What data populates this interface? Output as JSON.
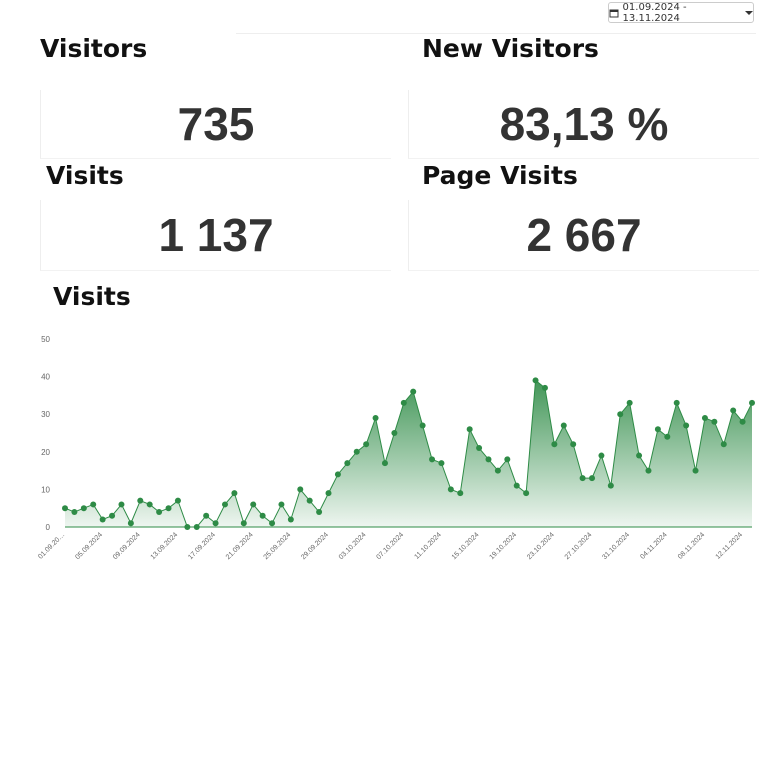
{
  "date_range": "01.09.2024 - 13.11.2024",
  "stats": [
    {
      "label": "Visitors",
      "value": "735"
    },
    {
      "label": "New Visitors",
      "value": "83,13 %"
    },
    {
      "label": "Visits",
      "value": "1 137"
    },
    {
      "label": "Page Visits",
      "value": "2 667"
    }
  ],
  "chart_data": {
    "type": "area",
    "title": "Visits",
    "categories": [
      "01.09.20…",
      null,
      null,
      null,
      "05.09.2024",
      null,
      null,
      null,
      "09.09.2024",
      null,
      null,
      null,
      "13.09.2024",
      null,
      null,
      null,
      "17.09.2024",
      null,
      null,
      null,
      "21.09.2024",
      null,
      null,
      null,
      "25.09.2024",
      null,
      null,
      null,
      "29.09.2024",
      null,
      null,
      null,
      "03.10.2024",
      null,
      null,
      null,
      "07.10.2024",
      null,
      null,
      null,
      "11.10.2024",
      null,
      null,
      null,
      "15.10.2024",
      null,
      null,
      null,
      "19.10.2024",
      null,
      null,
      null,
      "23.10.2024",
      null,
      null,
      null,
      "27.10.2024",
      null,
      null,
      null,
      "31.10.2024",
      null,
      null,
      null,
      "04.11.2024",
      null,
      null,
      null,
      "08.11.2024",
      null,
      null,
      null,
      "12.11.2024",
      null
    ],
    "values": [
      5,
      4,
      5,
      6,
      2,
      3,
      6,
      1,
      7,
      6,
      4,
      5,
      7,
      0,
      0,
      3,
      1,
      6,
      9,
      1,
      6,
      3,
      1,
      6,
      2,
      10,
      7,
      4,
      9,
      14,
      17,
      20,
      22,
      29,
      17,
      25,
      33,
      36,
      27,
      18,
      17,
      10,
      9,
      26,
      21,
      18,
      15,
      18,
      11,
      9,
      39,
      37,
      22,
      27,
      22,
      13,
      13,
      19,
      11,
      30,
      33,
      19,
      15,
      26,
      24,
      33,
      27,
      15,
      29,
      28,
      22,
      31,
      28,
      33
    ],
    "color": "#2e8b46",
    "ylim": [
      0,
      50
    ],
    "yticks": [
      0,
      10,
      20,
      30,
      40,
      50
    ]
  }
}
